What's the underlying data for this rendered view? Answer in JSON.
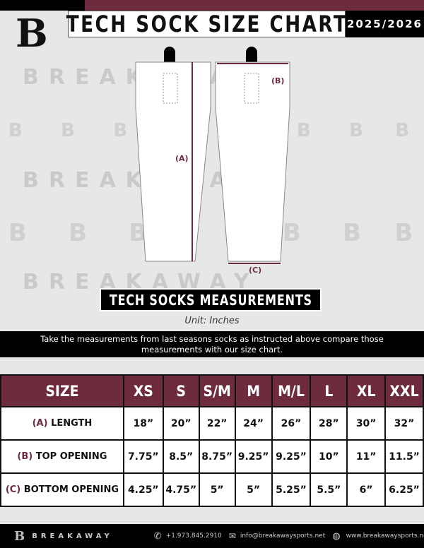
{
  "header": {
    "title": "TECH SOCK SIZE CHART",
    "season": "2025/2026",
    "logo": "B-logo"
  },
  "watermark": "BREAKAWAY",
  "diagram": {
    "label_a": "(A)",
    "label_b": "(B)",
    "label_c": "(C)"
  },
  "section_title": "TECH SOCKS MEASUREMENTS",
  "unit": "Unit: Inches",
  "instructions": "Take the measurements from last seasons socks as instructed above compare those measurements  with our size chart.",
  "table": {
    "header": "SIZE",
    "sizes": [
      "XS",
      "S",
      "S/M",
      "M",
      "M/L",
      "L",
      "XL",
      "XXL"
    ],
    "rows": [
      {
        "letter": "(A)",
        "label": "LENGTH",
        "values": [
          "18”",
          "20”",
          "22”",
          "24”",
          "26”",
          "28”",
          "30”",
          "32”"
        ]
      },
      {
        "letter": "(B)",
        "label": "TOP OPENING",
        "values": [
          "7.75”",
          "8.5”",
          "8.75”",
          "9.25”",
          "9.25”",
          "10”",
          "11”",
          "11.5”"
        ]
      },
      {
        "letter": "(C)",
        "label": "BOTTOM OPENING",
        "values": [
          "4.25”",
          "4.75”",
          "5”",
          "5”",
          "5.25”",
          "5.5”",
          "6”",
          "6.25”"
        ]
      }
    ]
  },
  "footer": {
    "brand": "BREAKAWAY",
    "phone": "+1.973.845.2910",
    "email": "info@breakawaysports.net",
    "website": "www.breakawaysports.net"
  },
  "colors": {
    "maroon": "#6d2b3d",
    "black": "#000000",
    "bg": "#e6e7e8"
  }
}
